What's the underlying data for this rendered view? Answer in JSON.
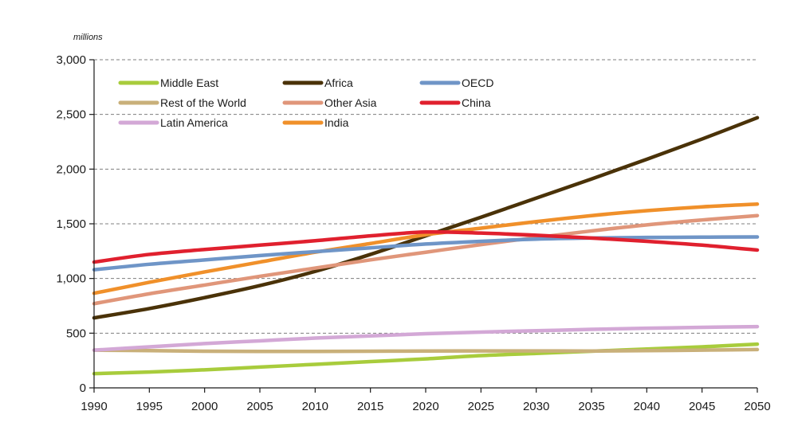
{
  "chart_data": {
    "type": "line",
    "unit_label": "millions",
    "x": [
      1990,
      1995,
      2000,
      2005,
      2010,
      2015,
      2020,
      2025,
      2030,
      2035,
      2040,
      2045,
      2050
    ],
    "x_tick_labels": [
      "1990",
      "1995",
      "2000",
      "2005",
      "2010",
      "2015",
      "2020",
      "2025",
      "2030",
      "2035",
      "2040",
      "2045",
      "2050"
    ],
    "y_ticks": [
      0,
      500,
      1000,
      1500,
      2000,
      2500,
      3000
    ],
    "y_tick_labels": [
      "0",
      "500",
      "1,000",
      "1,500",
      "2,000",
      "2,500",
      "3,000"
    ],
    "xlim": [
      1990,
      2050
    ],
    "ylim": [
      0,
      3000
    ],
    "grid": "horizontal dashed",
    "legend_position": "top-left",
    "series": [
      {
        "name": "Middle East",
        "color": "#a8cc3c",
        "values": [
          130,
          145,
          165,
          190,
          215,
          240,
          265,
          295,
          315,
          335,
          355,
          375,
          400
        ]
      },
      {
        "name": "Rest of the World",
        "color": "#c9b07a",
        "values": [
          345,
          340,
          335,
          333,
          333,
          335,
          337,
          338,
          338,
          337,
          340,
          345,
          350
        ]
      },
      {
        "name": "Latin America",
        "color": "#d3a8d6",
        "values": [
          345,
          375,
          405,
          430,
          455,
          475,
          495,
          510,
          522,
          535,
          545,
          553,
          560
        ]
      },
      {
        "name": "Africa",
        "color": "#4a3208",
        "values": [
          640,
          725,
          825,
          935,
          1065,
          1220,
          1390,
          1560,
          1735,
          1910,
          2090,
          2275,
          2470
        ]
      },
      {
        "name": "Other Asia",
        "color": "#e0967a",
        "values": [
          770,
          860,
          940,
          1020,
          1095,
          1170,
          1240,
          1310,
          1375,
          1435,
          1490,
          1535,
          1575
        ]
      },
      {
        "name": "India",
        "color": "#f0902a",
        "values": [
          865,
          965,
          1060,
          1150,
          1240,
          1320,
          1400,
          1460,
          1520,
          1575,
          1620,
          1655,
          1680
        ]
      },
      {
        "name": "OECD",
        "color": "#6f95c7",
        "values": [
          1080,
          1130,
          1170,
          1210,
          1245,
          1280,
          1315,
          1340,
          1360,
          1370,
          1375,
          1378,
          1380
        ]
      },
      {
        "name": "China",
        "color": "#e0202e",
        "values": [
          1150,
          1220,
          1265,
          1305,
          1345,
          1390,
          1425,
          1415,
          1395,
          1370,
          1340,
          1305,
          1260
        ]
      }
    ]
  }
}
